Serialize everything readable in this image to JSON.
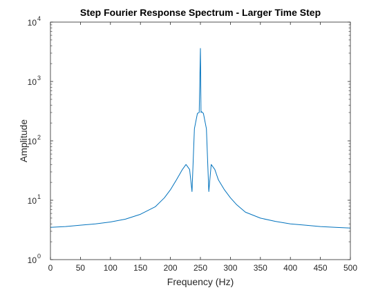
{
  "chart_data": {
    "type": "line",
    "title": "Step Fourier Response Spectrum - Larger Time Step",
    "xlabel": "Frequency (Hz)",
    "ylabel": "Amplitude",
    "xlim": [
      0,
      500
    ],
    "ylim": [
      1,
      10000
    ],
    "yscale": "log",
    "grid": false,
    "x_ticks": [
      0,
      50,
      100,
      150,
      200,
      250,
      300,
      350,
      400,
      450,
      500
    ],
    "x_tick_labels": [
      "0",
      "50",
      "100",
      "150",
      "200",
      "250",
      "300",
      "350",
      "400",
      "450",
      "500"
    ],
    "y_ticks": [
      1,
      10,
      100,
      1000,
      10000
    ],
    "y_tick_labels": [
      {
        "base": "10",
        "exp": "0"
      },
      {
        "base": "10",
        "exp": "1"
      },
      {
        "base": "10",
        "exp": "2"
      },
      {
        "base": "10",
        "exp": "3"
      },
      {
        "base": "10",
        "exp": "4"
      }
    ],
    "series": [
      {
        "color": "#0072BD",
        "x": [
          0,
          25,
          50,
          75,
          100,
          125,
          150,
          175,
          190,
          200,
          210,
          220,
          226,
          232,
          236,
          240,
          245,
          248,
          250,
          251,
          252,
          255,
          260,
          264,
          268,
          274,
          280,
          290,
          300,
          310,
          325,
          350,
          375,
          400,
          425,
          450,
          475,
          500
        ],
        "y": [
          3.5,
          3.6,
          3.8,
          4.0,
          4.3,
          4.8,
          5.8,
          7.8,
          11,
          15,
          22,
          33,
          40,
          33,
          14,
          160,
          290,
          300,
          3600,
          300,
          310,
          290,
          160,
          14,
          40,
          33,
          22,
          15,
          11,
          8.5,
          6.3,
          5.0,
          4.4,
          4.0,
          3.8,
          3.6,
          3.5,
          3.4
        ]
      }
    ]
  }
}
